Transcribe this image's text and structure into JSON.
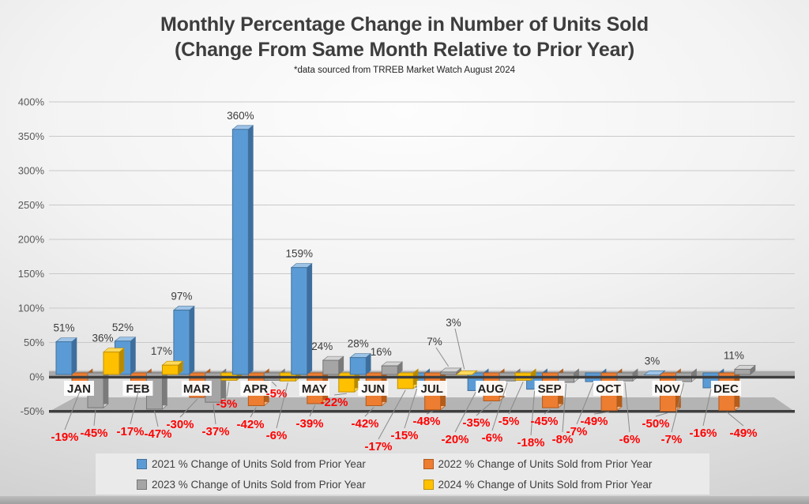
{
  "chart_data": {
    "type": "bar",
    "title": "Monthly Percentage Change in Number of Units Sold",
    "subtitle": "(Change From Same Month Relative to Prior Year)",
    "footnote": "*data sourced from TRREB Market Watch August 2024",
    "categories": [
      "JAN",
      "FEB",
      "MAR",
      "APR",
      "MAY",
      "JUN",
      "JUL",
      "AUG",
      "SEP",
      "OCT",
      "NOV",
      "DEC"
    ],
    "series": [
      {
        "name": "2021 % Change of Units Sold from Prior Year",
        "color": "#5B9BD5",
        "values": [
          51,
          52,
          97,
          360,
          159,
          28,
          -15,
          -20,
          -18,
          -7,
          3,
          -16
        ]
      },
      {
        "name": "2022 % Change of Units Sold from Prior Year",
        "color": "#ED7D31",
        "values": [
          -19,
          -17,
          -30,
          -42,
          -39,
          -42,
          -48,
          -35,
          -45,
          -49,
          -50,
          -49
        ]
      },
      {
        "name": "2023 % Change of Units Sold from Prior Year",
        "color": "#A5A5A5",
        "values": [
          -45,
          -47,
          -37,
          -5,
          24,
          16,
          7,
          -6,
          -8,
          -6,
          -7,
          11
        ]
      },
      {
        "name": "2024 % Change of Units Sold from Prior Year",
        "color": "#FFC000",
        "values": [
          36,
          17,
          -5,
          -6,
          -22,
          -17,
          3,
          -5,
          null,
          null,
          null,
          null
        ]
      }
    ],
    "y_axis": {
      "min": -50,
      "max": 400,
      "step": 50,
      "ticks": [
        "400%",
        "350%",
        "300%",
        "250%",
        "200%",
        "150%",
        "100%",
        "50%",
        "0%",
        "-50%"
      ]
    },
    "label_colors": {
      "positive": "#3b3b3b",
      "negative": "#FF0000"
    },
    "grid": true,
    "legend_position": "bottom"
  }
}
